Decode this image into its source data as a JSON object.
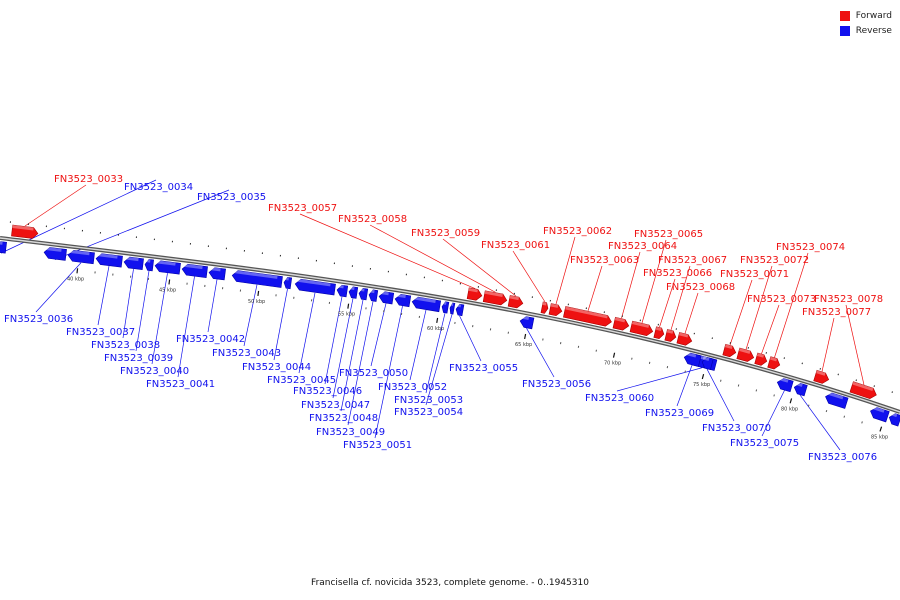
{
  "legend": {
    "forward_label": "Forward",
    "reverse_label": "Reverse",
    "forward_color": "#ee1111",
    "reverse_color": "#1111ee"
  },
  "caption": "Francisella cf. novicida 3523, complete genome. - 0..1945310",
  "ticks": [
    "40 kbp",
    "45 kbp",
    "50 kbp",
    "55 kbp",
    "60 kbp",
    "65 kbp",
    "70 kbp",
    "75 kbp",
    "80 kbp",
    "85 kbp"
  ],
  "genes": [
    {
      "name": "FN3523_0033",
      "strand": "forward"
    },
    {
      "name": "FN3523_0034",
      "strand": "reverse"
    },
    {
      "name": "FN3523_0035",
      "strand": "reverse"
    },
    {
      "name": "FN3523_0036",
      "strand": "reverse"
    },
    {
      "name": "FN3523_0037",
      "strand": "reverse"
    },
    {
      "name": "FN3523_0038",
      "strand": "reverse"
    },
    {
      "name": "FN3523_0039",
      "strand": "reverse"
    },
    {
      "name": "FN3523_0040",
      "strand": "reverse"
    },
    {
      "name": "FN3523_0041",
      "strand": "reverse"
    },
    {
      "name": "FN3523_0042",
      "strand": "reverse"
    },
    {
      "name": "FN3523_0043",
      "strand": "reverse"
    },
    {
      "name": "FN3523_0044",
      "strand": "reverse"
    },
    {
      "name": "FN3523_0045",
      "strand": "reverse"
    },
    {
      "name": "FN3523_0046",
      "strand": "reverse"
    },
    {
      "name": "FN3523_0047",
      "strand": "reverse"
    },
    {
      "name": "FN3523_0048",
      "strand": "reverse"
    },
    {
      "name": "FN3523_0049",
      "strand": "reverse"
    },
    {
      "name": "FN3523_0050",
      "strand": "reverse"
    },
    {
      "name": "FN3523_0051",
      "strand": "reverse"
    },
    {
      "name": "FN3523_0052",
      "strand": "reverse"
    },
    {
      "name": "FN3523_0053",
      "strand": "reverse"
    },
    {
      "name": "FN3523_0054",
      "strand": "reverse"
    },
    {
      "name": "FN3523_0055",
      "strand": "reverse"
    },
    {
      "name": "FN3523_0056",
      "strand": "reverse"
    },
    {
      "name": "FN3523_0057",
      "strand": "forward"
    },
    {
      "name": "FN3523_0058",
      "strand": "forward"
    },
    {
      "name": "FN3523_0059",
      "strand": "forward"
    },
    {
      "name": "FN3523_0060",
      "strand": "reverse"
    },
    {
      "name": "FN3523_0061",
      "strand": "forward"
    },
    {
      "name": "FN3523_0062",
      "strand": "forward"
    },
    {
      "name": "FN3523_0063",
      "strand": "forward"
    },
    {
      "name": "FN3523_0064",
      "strand": "forward"
    },
    {
      "name": "FN3523_0065",
      "strand": "forward"
    },
    {
      "name": "FN3523_0066",
      "strand": "forward"
    },
    {
      "name": "FN3523_0067",
      "strand": "forward"
    },
    {
      "name": "FN3523_0068",
      "strand": "forward"
    },
    {
      "name": "FN3523_0069",
      "strand": "reverse"
    },
    {
      "name": "FN3523_0070",
      "strand": "reverse"
    },
    {
      "name": "FN3523_0071",
      "strand": "forward"
    },
    {
      "name": "FN3523_0072",
      "strand": "forward"
    },
    {
      "name": "FN3523_0073",
      "strand": "forward"
    },
    {
      "name": "FN3523_0074",
      "strand": "forward"
    },
    {
      "name": "FN3523_0075",
      "strand": "reverse"
    },
    {
      "name": "FN3523_0076",
      "strand": "reverse"
    },
    {
      "name": "FN3523_0077",
      "strand": "forward"
    },
    {
      "name": "FN3523_0078",
      "strand": "forward"
    }
  ]
}
